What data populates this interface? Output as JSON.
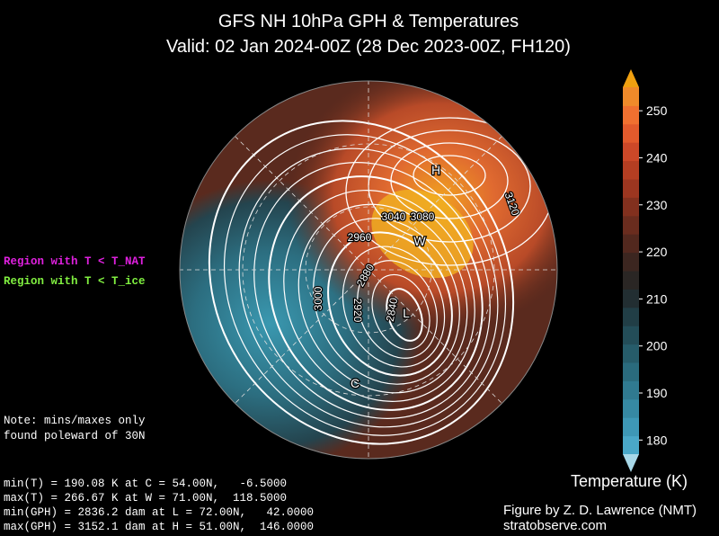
{
  "header": {
    "title": "GFS NH 10hPa GPH & Temperatures",
    "subtitle": "Valid: 02 Jan 2024-00Z  (28 Dec 2023-00Z, FH120)"
  },
  "legend": {
    "nat": "Region with T < T_NAT",
    "ice": "Region with T < T_ice"
  },
  "note": [
    "Note: mins/maxes only",
    "found poleward of 30N"
  ],
  "stats": [
    "min(T) = 190.08 K at C = 54.00N,   -6.5000",
    "max(T) = 266.67 K at W = 71.00N,  118.5000",
    "min(GPH) = 2836.2 dam at L = 72.00N,   42.0000",
    "max(GPH) = 3152.1 dam at H = 51.00N,  146.0000"
  ],
  "map": {
    "extrema": [
      "H",
      "W",
      "L",
      "C"
    ],
    "contour_labels": [
      "3040",
      "3080",
      "2960",
      "2880",
      "3000",
      "2920",
      "2840",
      "3120"
    ]
  },
  "colorbar": {
    "label": "Temperature (K)",
    "lim": [
      177,
      255
    ],
    "ticks": [
      180,
      190,
      200,
      210,
      220,
      230,
      240,
      250
    ]
  },
  "credit": [
    "Figure by Z. D. Lawrence (NMT)",
    "stratobserve.com"
  ]
}
